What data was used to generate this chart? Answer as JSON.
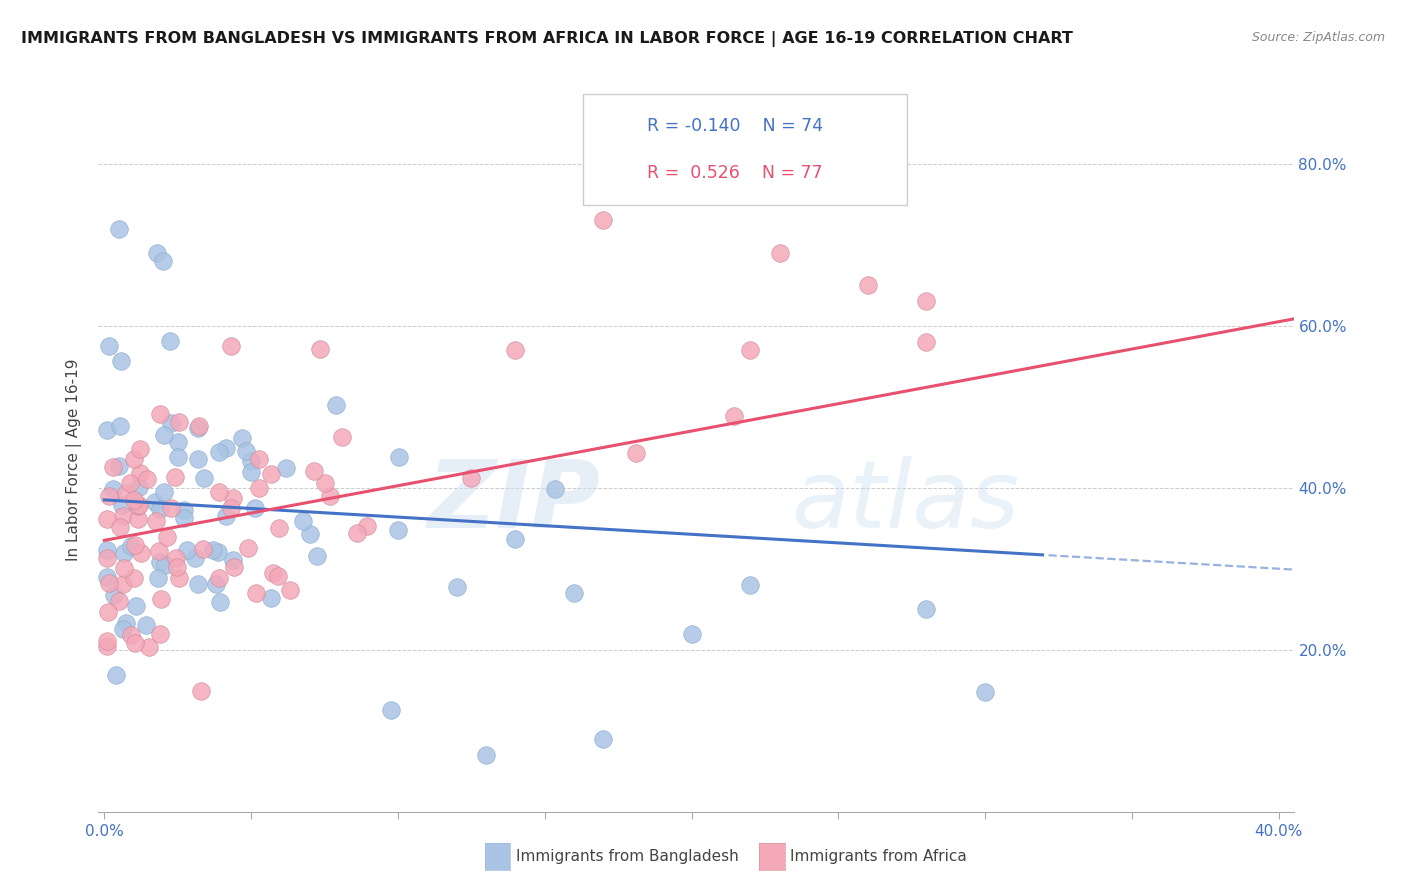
{
  "title": "IMMIGRANTS FROM BANGLADESH VS IMMIGRANTS FROM AFRICA IN LABOR FORCE | AGE 16-19 CORRELATION CHART",
  "source": "Source: ZipAtlas.com",
  "ylabel": "In Labor Force | Age 16-19",
  "legend_r_bangladesh": "-0.140",
  "legend_n_bangladesh": "74",
  "legend_r_africa": "0.526",
  "legend_n_africa": "77",
  "color_bangladesh": "#aac4e4",
  "color_africa": "#f4a8b8",
  "line_color_bangladesh": "#4472c4",
  "line_color_africa": "#e85070",
  "grid_color": "#cccccc",
  "bd_intercept": 0.385,
  "bd_slope": -0.42,
  "af_intercept": 0.33,
  "af_slope": 0.68
}
